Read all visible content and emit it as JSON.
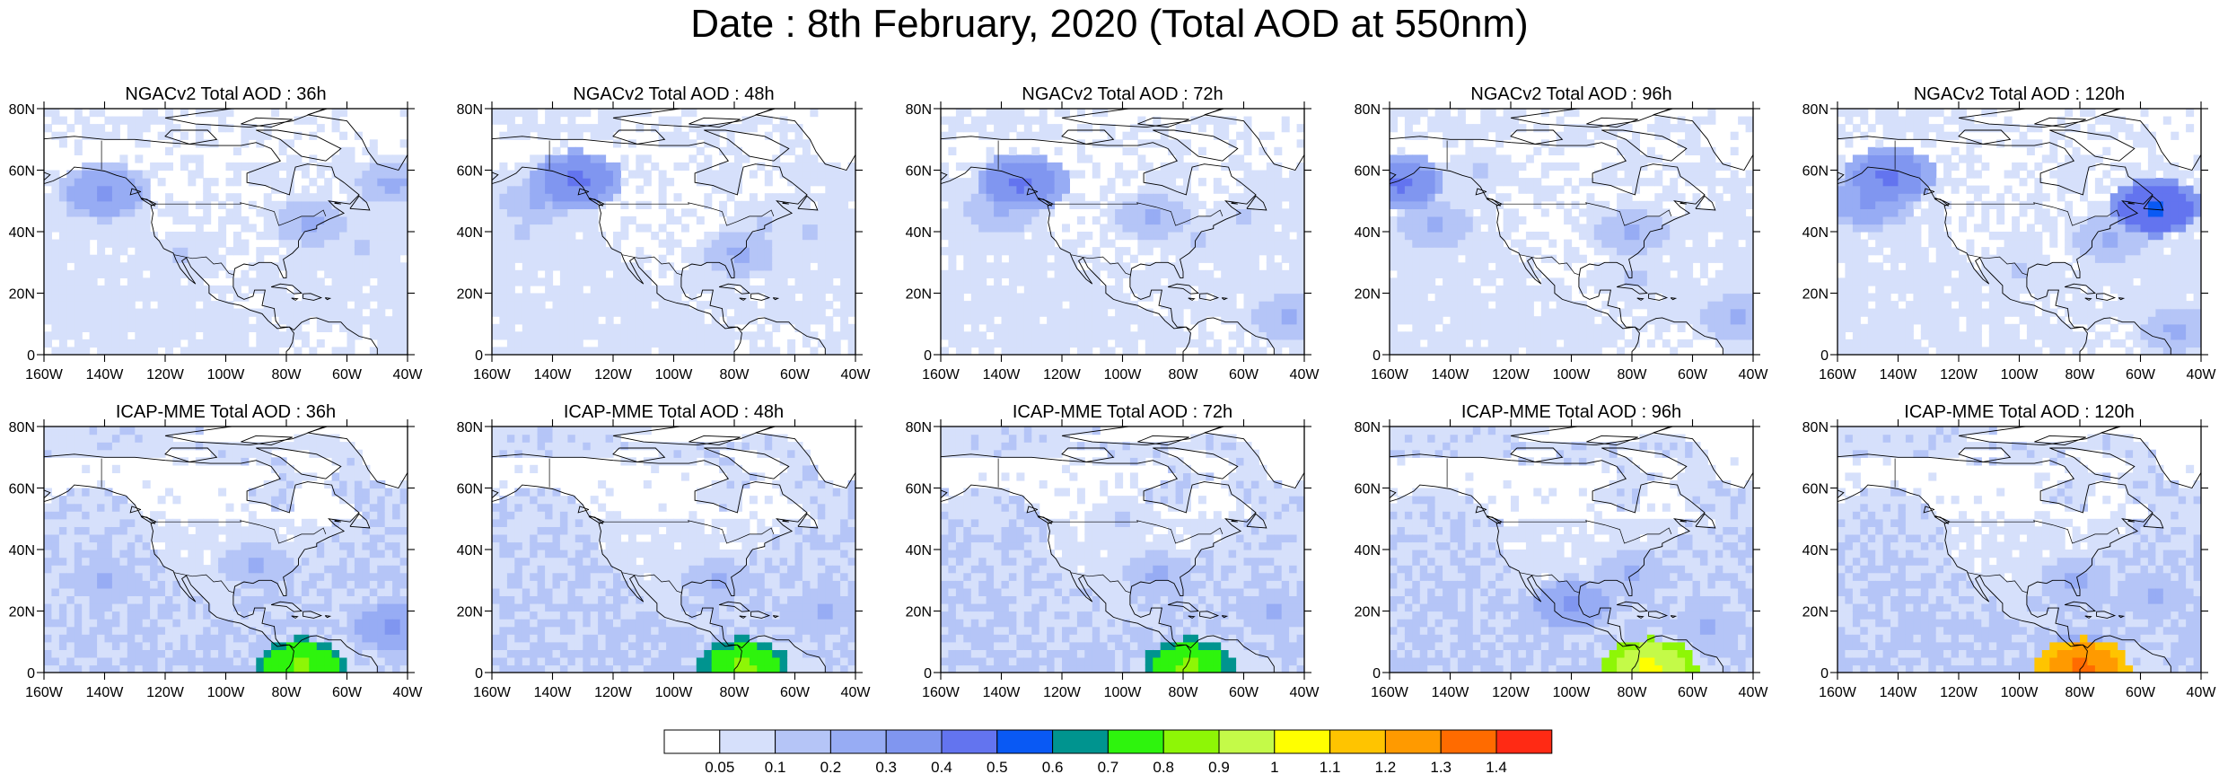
{
  "title": "Date : 8th February, 2020 (Total AOD at 550nm)",
  "chart_data": {
    "type": "heatmap",
    "grid": false,
    "x_ticks": [
      "160W",
      "140W",
      "120W",
      "100W",
      "80W",
      "60W",
      "40W"
    ],
    "y_ticks": [
      "80N",
      "60N",
      "40N",
      "20N",
      "0"
    ],
    "xlim": [
      -160,
      -40
    ],
    "ylim": [
      0,
      80
    ],
    "colorbar": {
      "placement": "bottom",
      "labels": [
        "0.05",
        "0.1",
        "0.2",
        "0.3",
        "0.4",
        "0.5",
        "0.6",
        "0.7",
        "0.8",
        "0.9",
        "1",
        "1.1",
        "1.2",
        "1.3",
        "1.4"
      ],
      "colors": [
        "#ffffff",
        "#d6e0fb",
        "#b5c5f7",
        "#97acf4",
        "#8096f0",
        "#6374ef",
        "#0959f4",
        "#00948f",
        "#2ef40d",
        "#8ef606",
        "#c4fa48",
        "#ffff00",
        "#ffc400",
        "#ff9a00",
        "#ff6b00",
        "#ff2a14"
      ]
    },
    "panels": [
      {
        "title": "NGACv2 Total AOD : 36h",
        "model": "NGACv2",
        "lead": "36h",
        "features": [
          {
            "lon": -140,
            "lat": 53,
            "level": 4
          },
          {
            "lon": -150,
            "lat": 48,
            "level": 2
          },
          {
            "lon": -115,
            "lat": 32,
            "level": 2
          },
          {
            "lon": -72,
            "lat": 43,
            "level": 3
          },
          {
            "lon": -45,
            "lat": 56,
            "level": 3
          },
          {
            "lon": -55,
            "lat": 35,
            "level": 2
          }
        ]
      },
      {
        "title": "NGACv2 Total AOD : 48h",
        "model": "NGACv2",
        "lead": "48h",
        "features": [
          {
            "lon": -132,
            "lat": 57,
            "level": 5
          },
          {
            "lon": -145,
            "lat": 50,
            "level": 3
          },
          {
            "lon": -78,
            "lat": 33,
            "level": 3
          },
          {
            "lon": -70,
            "lat": 42,
            "level": 2
          },
          {
            "lon": -55,
            "lat": 40,
            "level": 2
          },
          {
            "lon": -150,
            "lat": 40,
            "level": 2
          }
        ]
      },
      {
        "title": "NGACv2 Total AOD : 72h",
        "model": "NGACv2",
        "lead": "72h",
        "features": [
          {
            "lon": -133,
            "lat": 56,
            "level": 5
          },
          {
            "lon": -140,
            "lat": 47,
            "level": 3
          },
          {
            "lon": -90,
            "lat": 45,
            "level": 3
          },
          {
            "lon": -75,
            "lat": 38,
            "level": 2
          },
          {
            "lon": -45,
            "lat": 12,
            "level": 3
          },
          {
            "lon": -60,
            "lat": 45,
            "level": 2
          }
        ]
      },
      {
        "title": "NGACv2 Total AOD : 96h",
        "model": "NGACv2",
        "lead": "96h",
        "features": [
          {
            "lon": -157,
            "lat": 56,
            "level": 5
          },
          {
            "lon": -145,
            "lat": 42,
            "level": 3
          },
          {
            "lon": -80,
            "lat": 40,
            "level": 3
          },
          {
            "lon": -78,
            "lat": 25,
            "level": 2
          },
          {
            "lon": -45,
            "lat": 12,
            "level": 3
          },
          {
            "lon": -130,
            "lat": 60,
            "level": 2
          }
        ]
      },
      {
        "title": "NGACv2 Total AOD : 120h",
        "model": "NGACv2",
        "lead": "120h",
        "features": [
          {
            "lon": -143,
            "lat": 58,
            "level": 5
          },
          {
            "lon": -150,
            "lat": 50,
            "level": 4
          },
          {
            "lon": -55,
            "lat": 48,
            "level": 6
          },
          {
            "lon": -70,
            "lat": 38,
            "level": 3
          },
          {
            "lon": -48,
            "lat": 8,
            "level": 3
          },
          {
            "lon": -100,
            "lat": 28,
            "level": 2
          }
        ]
      },
      {
        "title": "ICAP-MME Total AOD : 36h",
        "model": "ICAP-MME",
        "lead": "36h",
        "features": [
          {
            "lon": -140,
            "lat": 30,
            "level": 3
          },
          {
            "lon": -90,
            "lat": 35,
            "level": 3
          },
          {
            "lon": -45,
            "lat": 15,
            "level": 4
          },
          {
            "lon": -75,
            "lat": 5,
            "level": 3
          },
          {
            "lon": -75,
            "lat": 2,
            "level": 9
          },
          {
            "lon": -55,
            "lat": 30,
            "level": 2
          }
        ]
      },
      {
        "title": "ICAP-MME Total AOD : 48h",
        "model": "ICAP-MME",
        "lead": "48h",
        "features": [
          {
            "lon": -130,
            "lat": 30,
            "level": 2
          },
          {
            "lon": -85,
            "lat": 30,
            "level": 3
          },
          {
            "lon": -50,
            "lat": 20,
            "level": 3
          },
          {
            "lon": -78,
            "lat": 5,
            "level": 3
          },
          {
            "lon": -77,
            "lat": 2,
            "level": 9
          },
          {
            "lon": -110,
            "lat": 15,
            "level": 2
          }
        ]
      },
      {
        "title": "ICAP-MME Total AOD : 72h",
        "model": "ICAP-MME",
        "lead": "72h",
        "features": [
          {
            "lon": -140,
            "lat": 20,
            "level": 2
          },
          {
            "lon": -88,
            "lat": 32,
            "level": 3
          },
          {
            "lon": -50,
            "lat": 20,
            "level": 3
          },
          {
            "lon": -80,
            "lat": 5,
            "level": 3
          },
          {
            "lon": -78,
            "lat": 2,
            "level": 9
          },
          {
            "lon": -100,
            "lat": 50,
            "level": 2
          }
        ]
      },
      {
        "title": "ICAP-MME Total AOD : 96h",
        "model": "ICAP-MME",
        "lead": "96h",
        "features": [
          {
            "lon": -100,
            "lat": 22,
            "level": 4
          },
          {
            "lon": -80,
            "lat": 32,
            "level": 3
          },
          {
            "lon": -55,
            "lat": 15,
            "level": 3
          },
          {
            "lon": -76,
            "lat": 5,
            "level": 3
          },
          {
            "lon": -74,
            "lat": 2,
            "level": 11
          },
          {
            "lon": -140,
            "lat": 25,
            "level": 2
          }
        ]
      },
      {
        "title": "ICAP-MME Total AOD : 120h",
        "model": "ICAP-MME",
        "lead": "120h",
        "features": [
          {
            "lon": -82,
            "lat": 30,
            "level": 3
          },
          {
            "lon": -55,
            "lat": 25,
            "level": 3
          },
          {
            "lon": -80,
            "lat": 6,
            "level": 4
          },
          {
            "lon": -79,
            "lat": 2,
            "level": 14
          },
          {
            "lon": -120,
            "lat": 15,
            "level": 2
          },
          {
            "lon": -140,
            "lat": 30,
            "level": 2
          }
        ]
      }
    ]
  }
}
